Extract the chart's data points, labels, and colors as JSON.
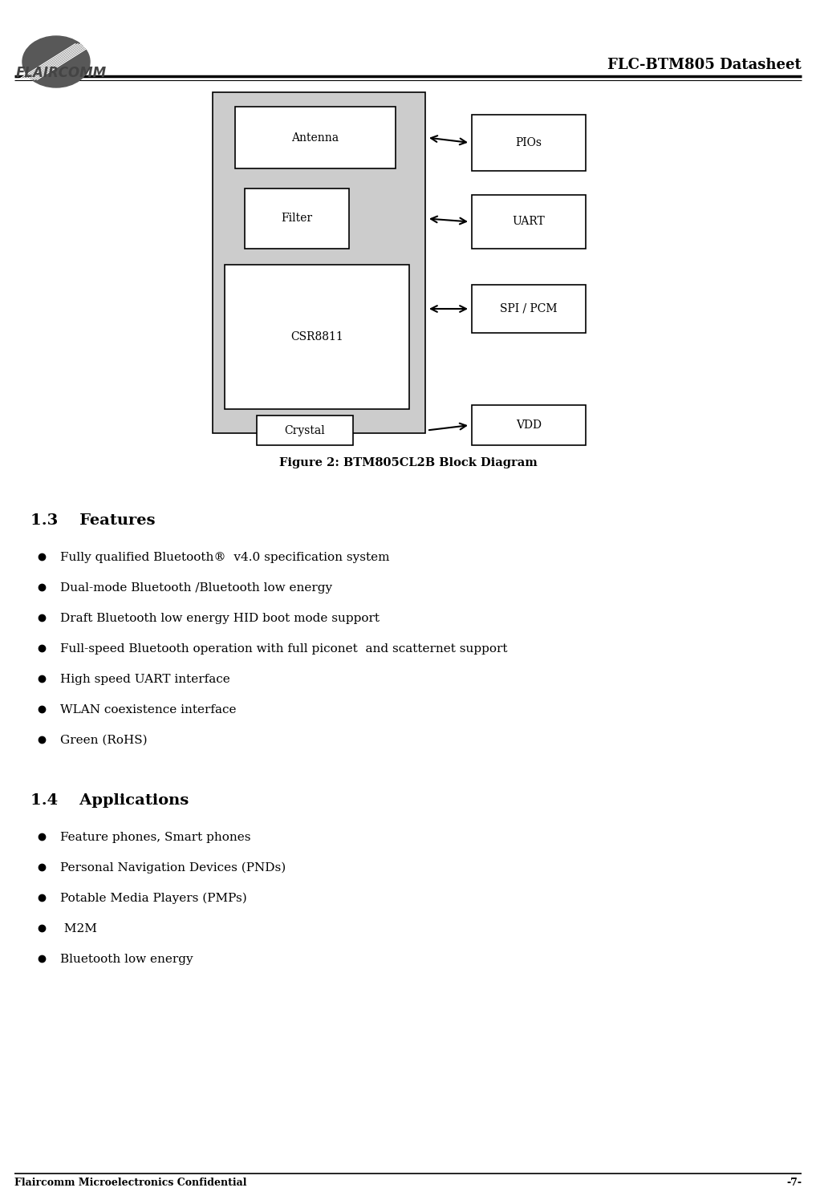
{
  "page_width": 10.17,
  "page_height": 15.01,
  "bg_color": "#ffffff",
  "title_text": "FLC-BTM805 Datasheet",
  "footer_left": "Flaircomm Microelectronics Confidential",
  "footer_right": "-7-",
  "diagram_caption": "Figure 2: BTM805CL2B Block Diagram",
  "section_13_title": "1.3    Features",
  "features": [
    "Fully qualified Bluetooth®  v4.0 specification system",
    "Dual-mode Bluetooth /Bluetooth low energy",
    "Draft Bluetooth low energy HID boot mode support",
    "Full-speed Bluetooth operation with full piconet  and scatternet support",
    "High speed UART interface",
    "WLAN coexistence interface",
    "Green (RoHS)"
  ],
  "section_14_title": "1.4    Applications",
  "applications": [
    "Feature phones, Smart phones",
    "Personal Navigation Devices (PNDs)",
    "Potable Media Players (PMPs)",
    " M2M",
    "Bluetooth low energy"
  ],
  "outer_box_color": "#cccccc",
  "header_thick_lw": 2.5,
  "header_thin_lw": 0.8,
  "footer_lw": 1.2
}
